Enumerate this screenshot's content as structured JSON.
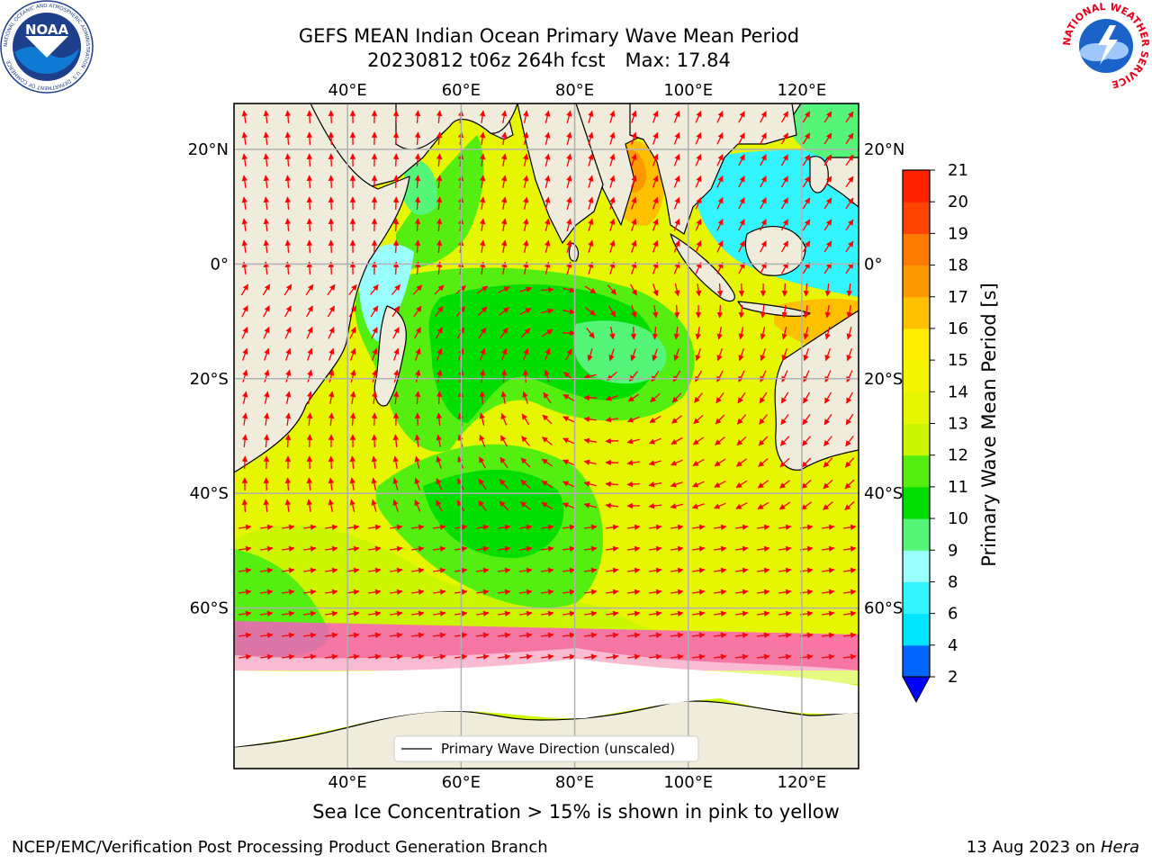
{
  "header": {
    "title": "GEFS MEAN Indian Ocean Primary Wave Mean Period",
    "cycle": "20230812 t06z 264h fcst",
    "max_label": "Max: 17.84"
  },
  "logos": {
    "left": {
      "icon": "noaa-logo-icon",
      "text": "NOAA",
      "ring_text": "NATIONAL OCEANIC AND ATMOSPHERIC ADMINISTRATION · U.S. DEPARTMENT OF COMMERCE"
    },
    "right": {
      "icon": "nws-logo-icon",
      "ring_text": "NATIONAL WEATHER SERVICE"
    }
  },
  "map": {
    "lon_ticks": [
      "40°E",
      "60°E",
      "80°E",
      "100°E",
      "120°E"
    ],
    "lat_ticks": [
      "20°N",
      "0°",
      "20°S",
      "40°S",
      "60°S"
    ],
    "lon_values": [
      40,
      60,
      80,
      100,
      120
    ],
    "lat_values": [
      20,
      0,
      -20,
      -40,
      -60
    ],
    "lon_range": [
      20,
      130
    ],
    "lat_range": [
      28,
      -88
    ],
    "grid": true,
    "legend": {
      "label": "Primary Wave Direction (unscaled)",
      "placement": "bottom-center"
    }
  },
  "colorbar": {
    "label": "Primary Wave Mean Period [s]",
    "ticks": [
      "2",
      "4",
      "6",
      "8",
      "9",
      "10",
      "11",
      "12",
      "13",
      "14",
      "15",
      "16",
      "17",
      "18",
      "19",
      "20",
      "21"
    ],
    "colors": [
      "#0066ff",
      "#00e5ff",
      "#33f5ff",
      "#99ffff",
      "#55f57a",
      "#00dd00",
      "#55ee11",
      "#ccf500",
      "#e6f500",
      "#f5f500",
      "#ffee00",
      "#ffc000",
      "#ff9900",
      "#ff7a00",
      "#ff4400",
      "#ff2200"
    ],
    "extend_below_color": "#0000ff",
    "land_color": "#efecdc",
    "ice_color": "#ff55cc"
  },
  "footer": {
    "subtitle": "Sea Ice Concentration > 15% is shown in pink to yellow",
    "credit_left": "NCEP/EMC/Verification Post Processing Product Generation Branch",
    "date": "13 Aug 2023 on",
    "machine": "Hera"
  }
}
